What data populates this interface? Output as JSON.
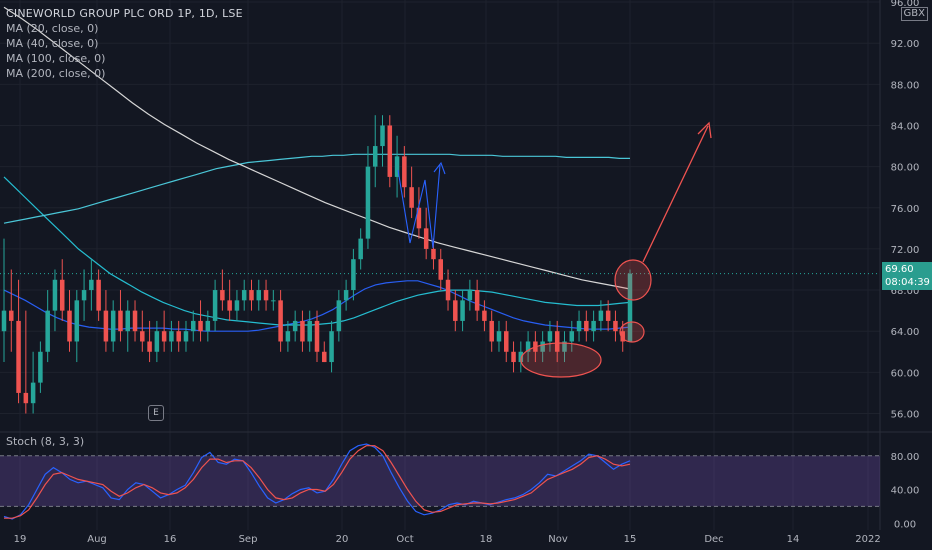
{
  "header": {
    "title": "CINEWORLD GROUP PLC ORD 1P, 1D, LSE",
    "ma_labels": [
      "MA (20, close, 0)",
      "MA (40, close, 0)",
      "MA (100, close, 0)",
      "MA (200, close, 0)"
    ],
    "currency": "GBX"
  },
  "price_tag": {
    "price": "69.60",
    "countdown": "08:04:39"
  },
  "stoch_label": "Stoch (8, 3, 3)",
  "badge_label": "E",
  "colors": {
    "background": "#131722",
    "up": "#26a69a",
    "down": "#ef5350",
    "ma20": "#2962ff",
    "ma40": "#26c6da",
    "ma100": "#4dd0e1",
    "ma200": "#e0e0e0",
    "stoch_k": "#2962ff",
    "stoch_d": "#ef5350",
    "stoch_band": "#7e57c2"
  },
  "chart_data": [
    {
      "type": "candlestick",
      "title": "CINEWORLD GROUP PLC ORD 1P, 1D, LSE",
      "x_tick_labels": [
        "19",
        "Aug",
        "16",
        "Sep",
        "20",
        "Oct",
        "18",
        "Nov",
        "15",
        "Dec",
        "14",
        "2022"
      ],
      "y_tick_labels": [
        "56.00",
        "60.00",
        "64.00",
        "68.00",
        "72.00",
        "76.00",
        "80.00",
        "84.00",
        "88.00",
        "92.00",
        "96.00"
      ],
      "ylim": [
        54.2,
        96.2
      ],
      "current_price": 69.6,
      "candles": [
        {
          "o": 64,
          "h": 73,
          "l": 61,
          "c": 66
        },
        {
          "o": 66,
          "h": 70,
          "l": 62,
          "c": 65
        },
        {
          "o": 65,
          "h": 69,
          "l": 57,
          "c": 58
        },
        {
          "o": 58,
          "h": 66,
          "l": 56,
          "c": 57
        },
        {
          "o": 57,
          "h": 62,
          "l": 56,
          "c": 59
        },
        {
          "o": 59,
          "h": 63,
          "l": 58,
          "c": 62
        },
        {
          "o": 62,
          "h": 68,
          "l": 61,
          "c": 66
        },
        {
          "o": 66,
          "h": 70,
          "l": 64,
          "c": 69
        },
        {
          "o": 69,
          "h": 71,
          "l": 65,
          "c": 66
        },
        {
          "o": 66,
          "h": 68,
          "l": 62,
          "c": 63
        },
        {
          "o": 63,
          "h": 68,
          "l": 61,
          "c": 67
        },
        {
          "o": 67,
          "h": 70,
          "l": 65,
          "c": 68
        },
        {
          "o": 68,
          "h": 71,
          "l": 66,
          "c": 69
        },
        {
          "o": 69,
          "h": 70,
          "l": 65,
          "c": 66
        },
        {
          "o": 66,
          "h": 68,
          "l": 62,
          "c": 63
        },
        {
          "o": 63,
          "h": 67,
          "l": 62,
          "c": 66
        },
        {
          "o": 66,
          "h": 68,
          "l": 63,
          "c": 64
        },
        {
          "o": 64,
          "h": 67,
          "l": 62,
          "c": 66
        },
        {
          "o": 66,
          "h": 67,
          "l": 63,
          "c": 64
        },
        {
          "o": 64,
          "h": 66,
          "l": 62,
          "c": 63
        },
        {
          "o": 63,
          "h": 65,
          "l": 61,
          "c": 62
        },
        {
          "o": 62,
          "h": 65,
          "l": 61,
          "c": 64
        },
        {
          "o": 64,
          "h": 66,
          "l": 62,
          "c": 63
        },
        {
          "o": 63,
          "h": 65,
          "l": 62,
          "c": 64
        },
        {
          "o": 64,
          "h": 65,
          "l": 62,
          "c": 63
        },
        {
          "o": 63,
          "h": 65,
          "l": 62,
          "c": 64
        },
        {
          "o": 64,
          "h": 66,
          "l": 63,
          "c": 65
        },
        {
          "o": 65,
          "h": 67,
          "l": 63,
          "c": 64
        },
        {
          "o": 64,
          "h": 66,
          "l": 63,
          "c": 65
        },
        {
          "o": 65,
          "h": 69,
          "l": 64,
          "c": 68
        },
        {
          "o": 68,
          "h": 70,
          "l": 66,
          "c": 67
        },
        {
          "o": 67,
          "h": 69,
          "l": 65,
          "c": 66
        },
        {
          "o": 66,
          "h": 68,
          "l": 65,
          "c": 67
        },
        {
          "o": 67,
          "h": 69,
          "l": 66,
          "c": 68
        },
        {
          "o": 68,
          "h": 69,
          "l": 66,
          "c": 67
        },
        {
          "o": 67,
          "h": 69,
          "l": 66,
          "c": 68
        },
        {
          "o": 68,
          "h": 69,
          "l": 66,
          "c": 67
        },
        {
          "o": 67,
          "h": 68,
          "l": 66,
          "c": 67
        },
        {
          "o": 67,
          "h": 68,
          "l": 62,
          "c": 63
        },
        {
          "o": 63,
          "h": 65,
          "l": 62,
          "c": 64
        },
        {
          "o": 64,
          "h": 66,
          "l": 63,
          "c": 65
        },
        {
          "o": 65,
          "h": 66,
          "l": 62,
          "c": 63
        },
        {
          "o": 63,
          "h": 66,
          "l": 62,
          "c": 65
        },
        {
          "o": 65,
          "h": 66,
          "l": 61,
          "c": 62
        },
        {
          "o": 62,
          "h": 63,
          "l": 61,
          "c": 61
        },
        {
          "o": 61,
          "h": 65,
          "l": 60,
          "c": 64
        },
        {
          "o": 64,
          "h": 68,
          "l": 63,
          "c": 67
        },
        {
          "o": 67,
          "h": 69,
          "l": 66,
          "c": 68
        },
        {
          "o": 68,
          "h": 72,
          "l": 67,
          "c": 71
        },
        {
          "o": 71,
          "h": 74,
          "l": 70,
          "c": 73
        },
        {
          "o": 73,
          "h": 82,
          "l": 72,
          "c": 80
        },
        {
          "o": 80,
          "h": 85,
          "l": 78,
          "c": 82
        },
        {
          "o": 82,
          "h": 85,
          "l": 80,
          "c": 84
        },
        {
          "o": 84,
          "h": 85,
          "l": 78,
          "c": 79
        },
        {
          "o": 79,
          "h": 83,
          "l": 77,
          "c": 81
        },
        {
          "o": 81,
          "h": 82,
          "l": 77,
          "c": 78
        },
        {
          "o": 78,
          "h": 80,
          "l": 75,
          "c": 76
        },
        {
          "o": 76,
          "h": 78,
          "l": 73,
          "c": 74
        },
        {
          "o": 74,
          "h": 76,
          "l": 71,
          "c": 72
        },
        {
          "o": 72,
          "h": 73,
          "l": 70,
          "c": 71
        },
        {
          "o": 71,
          "h": 72,
          "l": 68,
          "c": 69
        },
        {
          "o": 69,
          "h": 70,
          "l": 66,
          "c": 67
        },
        {
          "o": 67,
          "h": 68,
          "l": 64,
          "c": 65
        },
        {
          "o": 65,
          "h": 68,
          "l": 64,
          "c": 67
        },
        {
          "o": 67,
          "h": 69,
          "l": 66,
          "c": 68
        },
        {
          "o": 68,
          "h": 69,
          "l": 65,
          "c": 66
        },
        {
          "o": 66,
          "h": 67,
          "l": 64,
          "c": 65
        },
        {
          "o": 65,
          "h": 66,
          "l": 62,
          "c": 63
        },
        {
          "o": 63,
          "h": 65,
          "l": 62,
          "c": 64
        },
        {
          "o": 64,
          "h": 65,
          "l": 61,
          "c": 62
        },
        {
          "o": 62,
          "h": 63,
          "l": 60,
          "c": 61
        },
        {
          "o": 61,
          "h": 63,
          "l": 60,
          "c": 62
        },
        {
          "o": 62,
          "h": 64,
          "l": 61,
          "c": 63
        },
        {
          "o": 63,
          "h": 64,
          "l": 61,
          "c": 62
        },
        {
          "o": 62,
          "h": 64,
          "l": 61,
          "c": 63
        },
        {
          "o": 63,
          "h": 65,
          "l": 62,
          "c": 64
        },
        {
          "o": 64,
          "h": 65,
          "l": 61,
          "c": 62
        },
        {
          "o": 62,
          "h": 64,
          "l": 61,
          "c": 63
        },
        {
          "o": 63,
          "h": 65,
          "l": 62,
          "c": 64
        },
        {
          "o": 64,
          "h": 66,
          "l": 63,
          "c": 65
        },
        {
          "o": 65,
          "h": 66,
          "l": 63,
          "c": 64
        },
        {
          "o": 64,
          "h": 66,
          "l": 63,
          "c": 65
        },
        {
          "o": 65,
          "h": 67,
          "l": 64,
          "c": 66
        },
        {
          "o": 66,
          "h": 67,
          "l": 64,
          "c": 65
        },
        {
          "o": 65,
          "h": 66,
          "l": 63,
          "c": 64
        },
        {
          "o": 64,
          "h": 65,
          "l": 62,
          "c": 63
        },
        {
          "o": 63,
          "h": 70,
          "l": 63,
          "c": 69.6
        }
      ],
      "moving_averages": [
        {
          "name": "MA (20, close, 0)",
          "values": [
            68,
            67.5,
            67,
            66.4,
            65.8,
            65.3,
            64.9,
            64.6,
            64.4,
            64.3,
            64.2,
            64.2,
            64.3,
            64.3,
            64.3,
            64.3,
            64.2,
            64.2,
            64.1,
            64,
            64,
            64,
            64,
            64,
            64.1,
            64.3,
            64.5,
            64.7,
            64.9,
            65.2,
            65.6,
            66.1,
            66.8,
            67.5,
            68.1,
            68.5,
            68.7,
            68.8,
            68.9,
            68.9,
            68.6,
            68.3,
            67.9,
            67.4,
            66.9,
            66.5,
            66.1,
            65.7,
            65.3,
            65,
            64.8,
            64.6,
            64.5,
            64.4,
            64.3,
            64.2,
            64.2,
            64.2,
            64.3,
            64.4
          ]
        },
        {
          "name": "MA (40, close, 0)",
          "values": [
            79,
            78,
            77,
            76,
            75,
            74,
            73,
            72,
            71.2,
            70.4,
            69.6,
            69,
            68.4,
            67.8,
            67.3,
            66.8,
            66.4,
            66,
            65.7,
            65.5,
            65.3,
            65.1,
            65,
            64.9,
            64.8,
            64.7,
            64.6,
            64.6,
            64.6,
            64.6,
            64.7,
            64.8,
            65,
            65.3,
            65.7,
            66.1,
            66.5,
            66.9,
            67.2,
            67.5,
            67.7,
            67.9,
            68,
            68,
            68,
            67.9,
            67.8,
            67.6,
            67.4,
            67.2,
            67,
            66.8,
            66.7,
            66.6,
            66.5,
            66.5,
            66.5,
            66.6,
            66.7,
            66.8
          ]
        },
        {
          "name": "MA (100, close, 0)",
          "values": [
            74.5,
            74.7,
            74.9,
            75.1,
            75.3,
            75.5,
            75.7,
            75.9,
            76.2,
            76.5,
            76.8,
            77.1,
            77.4,
            77.7,
            78,
            78.3,
            78.6,
            78.9,
            79.2,
            79.5,
            79.8,
            80,
            80.2,
            80.4,
            80.5,
            80.6,
            80.7,
            80.8,
            80.9,
            81,
            81,
            81.1,
            81.1,
            81.2,
            81.2,
            81.2,
            81.2,
            81.2,
            81.2,
            81.2,
            81.2,
            81.2,
            81.2,
            81.1,
            81.1,
            81.1,
            81.1,
            81,
            81,
            81,
            81,
            81,
            81,
            80.9,
            80.9,
            80.9,
            80.9,
            80.9,
            80.8,
            80.8
          ]
        },
        {
          "name": "MA (200, close, 0)",
          "values": [
            95.5,
            94.5,
            93.4,
            92.2,
            91,
            89.8,
            88.6,
            87.4,
            86.2,
            85.1,
            84.1,
            83.2,
            82.3,
            81.5,
            80.7,
            80,
            79.3,
            78.6,
            77.9,
            77.2,
            76.5,
            75.9,
            75.3,
            74.7,
            74.1,
            73.6,
            73.1,
            72.6,
            72.2,
            71.8,
            71.4,
            71,
            70.6,
            70.2,
            69.8,
            69.4,
            69,
            68.7,
            68.4,
            68.1
          ]
        }
      ]
    },
    {
      "type": "line",
      "title": "Stoch (8, 3, 3)",
      "y_tick_labels": [
        "0.00",
        "40.00",
        "80.00"
      ],
      "ylim": [
        -8,
        107
      ],
      "band": [
        20,
        80
      ],
      "series": [
        {
          "name": "%K",
          "values": [
            8,
            5,
            10,
            22,
            40,
            58,
            66,
            60,
            52,
            48,
            50,
            46,
            42,
            30,
            28,
            40,
            48,
            46,
            38,
            30,
            34,
            40,
            45,
            60,
            78,
            84,
            72,
            70,
            76,
            74,
            60,
            44,
            30,
            24,
            28,
            35,
            40,
            42,
            36,
            38,
            52,
            70,
            86,
            92,
            94,
            90,
            80,
            60,
            42,
            26,
            14,
            10,
            12,
            16,
            22,
            24,
            22,
            26,
            24,
            22,
            25,
            28,
            30,
            34,
            40,
            48,
            58,
            56,
            62,
            68,
            74,
            82,
            80,
            72,
            64,
            70,
            74
          ]
        },
        {
          "name": "%D",
          "values": [
            6,
            6,
            9,
            16,
            30,
            46,
            58,
            60,
            56,
            52,
            50,
            48,
            46,
            38,
            32,
            36,
            42,
            46,
            42,
            36,
            34,
            36,
            42,
            52,
            66,
            76,
            76,
            72,
            74,
            74,
            66,
            54,
            40,
            30,
            28,
            30,
            36,
            40,
            40,
            38,
            46,
            60,
            76,
            86,
            92,
            92,
            86,
            72,
            56,
            40,
            26,
            16,
            13,
            14,
            18,
            22,
            23,
            24,
            24,
            23,
            24,
            26,
            28,
            32,
            36,
            44,
            52,
            56,
            60,
            64,
            70,
            78,
            80,
            76,
            70,
            68,
            70
          ]
        }
      ]
    }
  ]
}
